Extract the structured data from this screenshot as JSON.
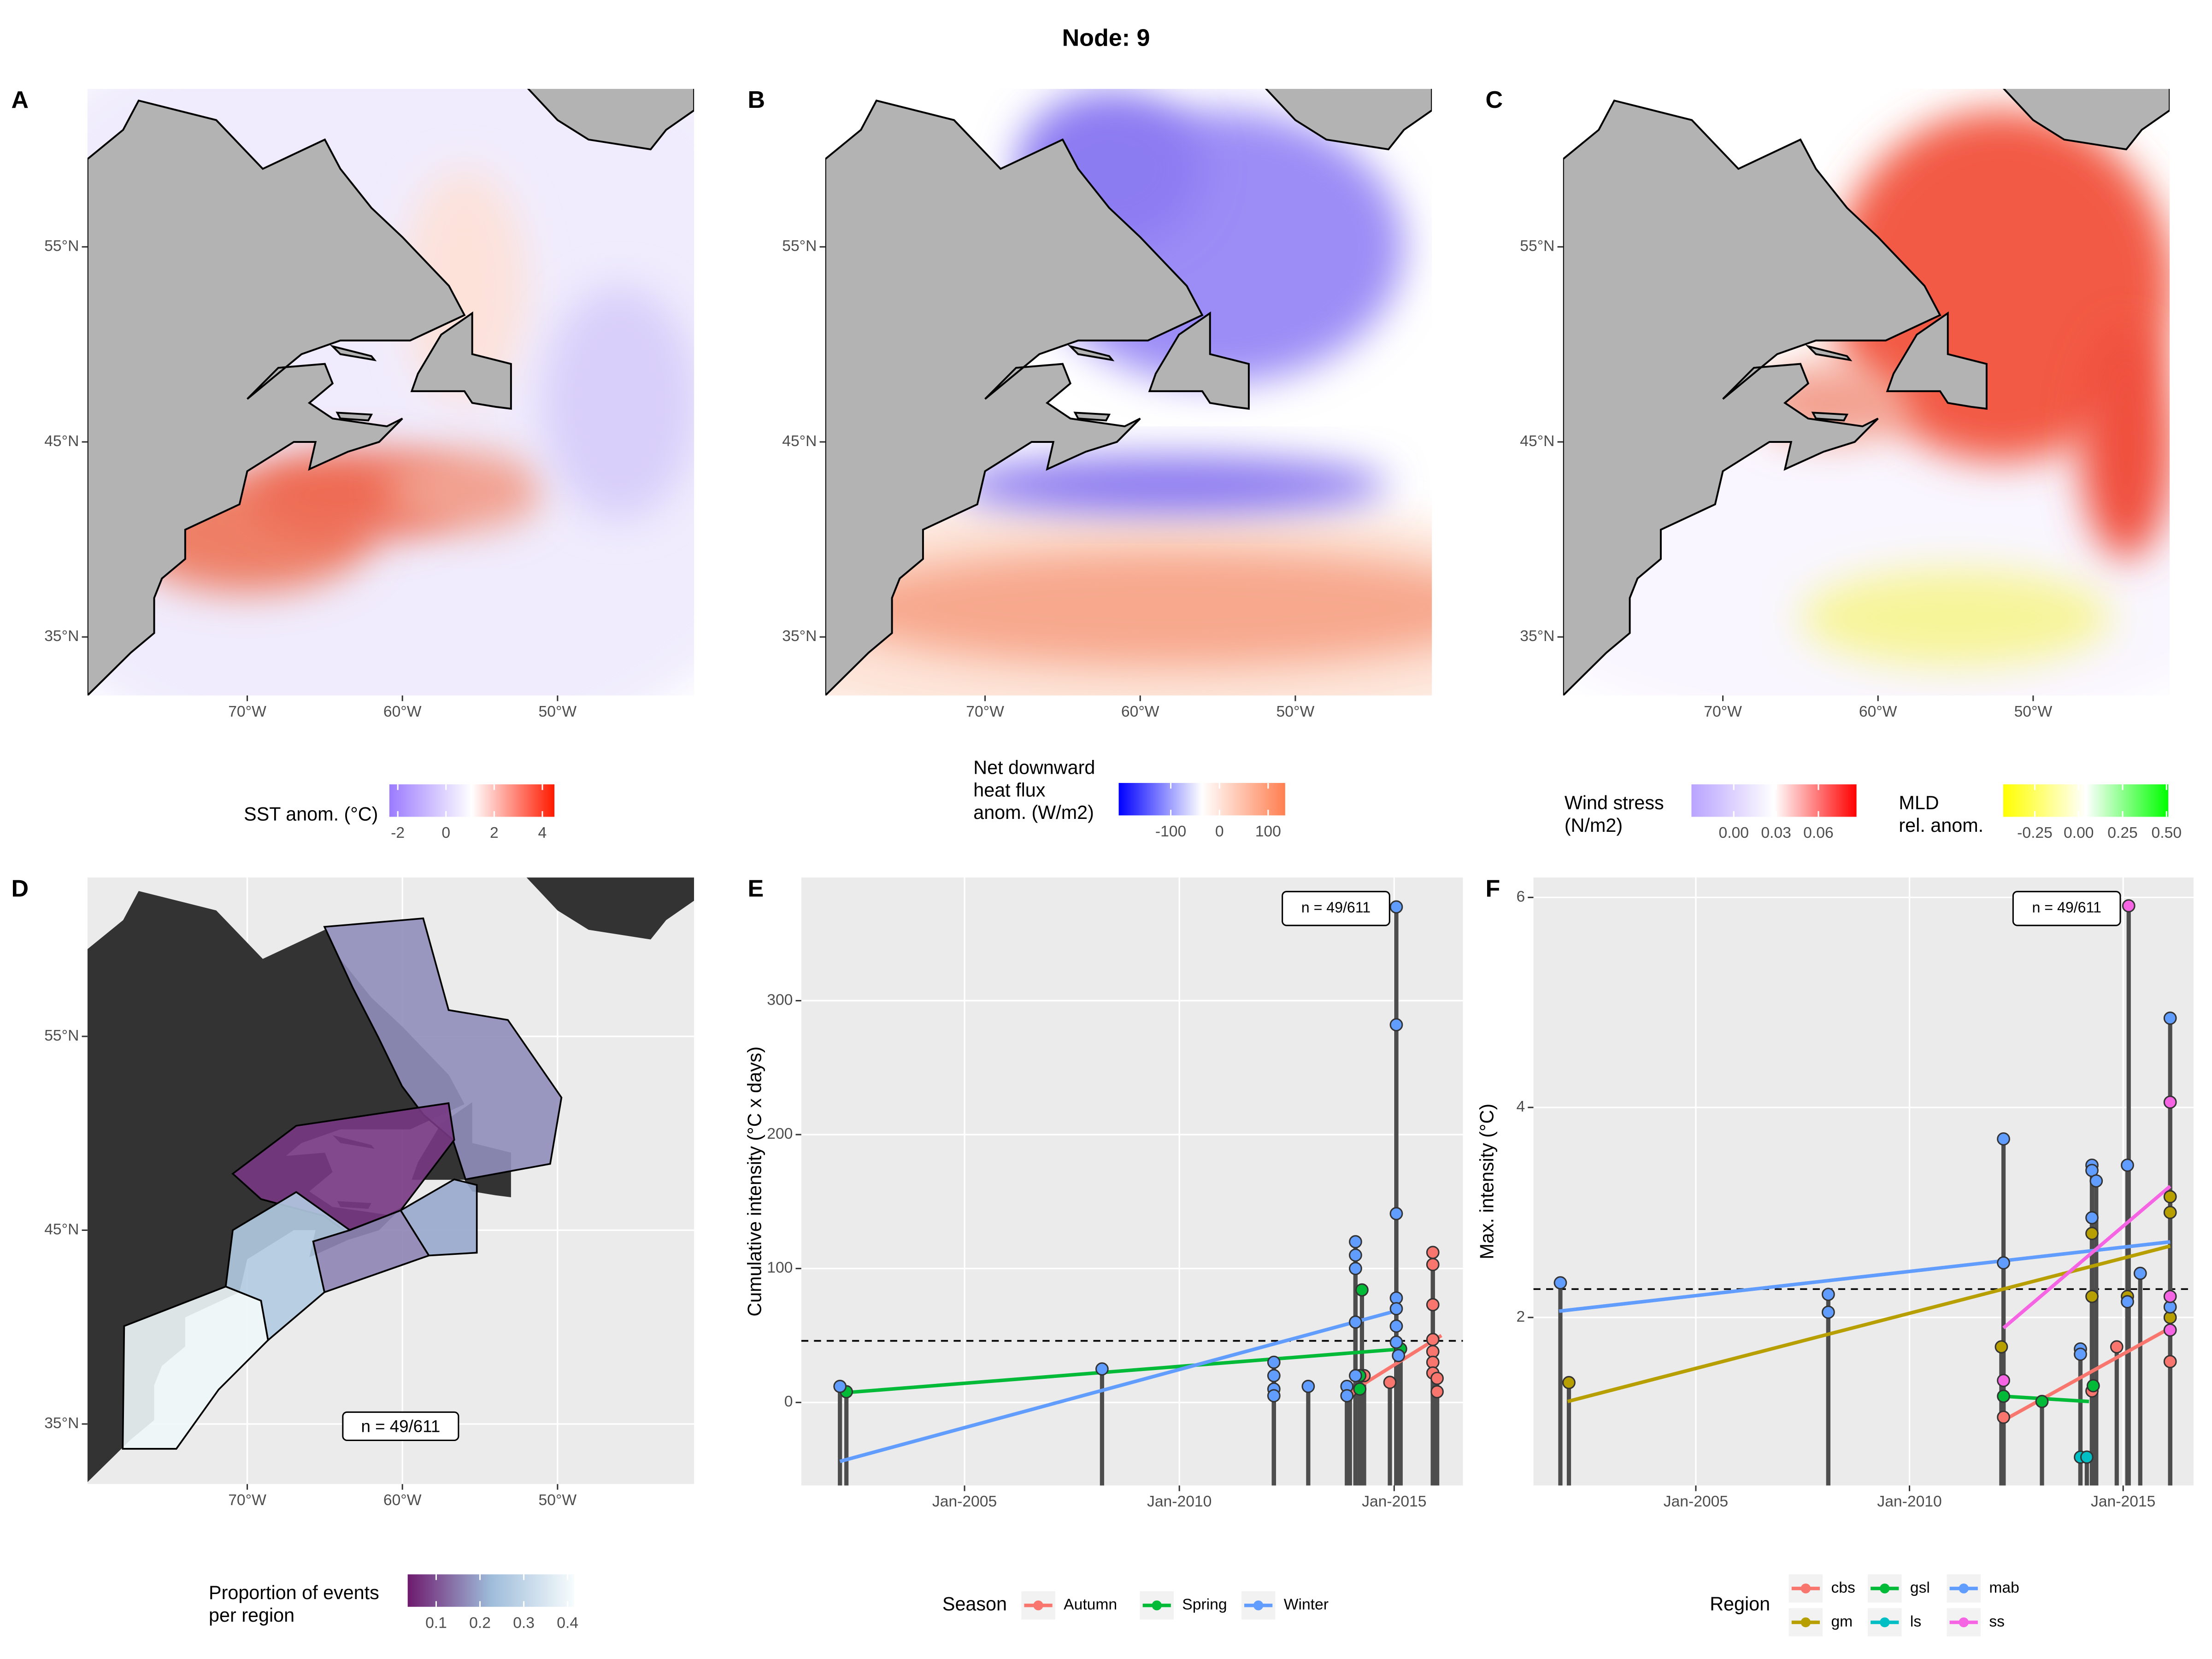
{
  "title": "Node: 9",
  "chart_data": [
    {
      "type": "map",
      "label": "A",
      "xlim": [
        -80.3,
        -41.2
      ],
      "ylim": [
        32,
        63.1
      ],
      "xticks": [
        {
          "value": -70,
          "label": "70°W"
        },
        {
          "value": -60,
          "label": "60°W"
        },
        {
          "value": -50,
          "label": "50°W"
        }
      ],
      "yticks": [
        {
          "value": 35,
          "label": "35°N"
        },
        {
          "value": 45,
          "label": "45°N"
        },
        {
          "value": 55,
          "label": "55°N"
        }
      ],
      "colorbars": [
        {
          "title": [
            "SST anom. (°C)"
          ],
          "lim": [
            -2.35,
            4.5
          ],
          "ticks": [
            -2,
            0,
            2,
            4
          ],
          "colors": [
            "#9b7bff",
            "#ffffff",
            "#ff1a00"
          ]
        }
      ]
    },
    {
      "type": "map",
      "label": "B",
      "xlim": [
        -80.3,
        -41.2
      ],
      "ylim": [
        32,
        63.1
      ],
      "xticks": [
        {
          "value": -70,
          "label": "70°W"
        },
        {
          "value": -60,
          "label": "60°W"
        },
        {
          "value": -50,
          "label": "50°W"
        }
      ],
      "yticks": [
        {
          "value": 35,
          "label": "35°N"
        },
        {
          "value": 45,
          "label": "45°N"
        },
        {
          "value": 55,
          "label": "55°N"
        }
      ],
      "colorbars": [
        {
          "title": [
            "Net downward",
            "heat flux",
            "anom. (W/m2)"
          ],
          "lim": [
            -207,
            135
          ],
          "ticks": [
            -100,
            0,
            100
          ],
          "colors": [
            "#0000ff",
            "#ffffff",
            "#ff7f50"
          ]
        }
      ]
    },
    {
      "type": "map",
      "label": "C",
      "xlim": [
        -80.3,
        -41.2
      ],
      "ylim": [
        32,
        63.1
      ],
      "xticks": [
        {
          "value": -70,
          "label": "70°W"
        },
        {
          "value": -60,
          "label": "60°W"
        },
        {
          "value": -50,
          "label": "50°W"
        }
      ],
      "yticks": [
        {
          "value": 35,
          "label": "35°N"
        },
        {
          "value": 45,
          "label": "45°N"
        },
        {
          "value": 55,
          "label": "55°N"
        }
      ],
      "colorbars": [
        {
          "title": [
            "Wind stress",
            "(N/m2)"
          ],
          "lim": [
            -0.03,
            0.087
          ],
          "ticks": [
            {
              "value": 0,
              "label": "0.00"
            },
            {
              "value": 0.03,
              "label": "0.03"
            },
            {
              "value": 0.06,
              "label": "0.06"
            }
          ],
          "colors": [
            "#b9a3ff",
            "#ffffff",
            "#ff0000"
          ]
        },
        {
          "title": [
            "MLD",
            "rel. anom."
          ],
          "lim": [
            -0.43,
            0.51
          ],
          "ticks": [
            {
              "value": -0.25,
              "label": "-0.25"
            },
            {
              "value": 0,
              "label": "0.00"
            },
            {
              "value": 0.25,
              "label": "0.25"
            },
            {
              "value": 0.5,
              "label": "0.50"
            }
          ],
          "colors": [
            "#ffff00",
            "#ffffff",
            "#00ff00"
          ]
        }
      ]
    },
    {
      "type": "choropleth",
      "label": "D",
      "xlim": [
        -80.3,
        -41.2
      ],
      "ylim": [
        31.9,
        63.2
      ],
      "xticks": [
        {
          "value": -70,
          "label": "70°W"
        },
        {
          "value": -60,
          "label": "60°W"
        },
        {
          "value": -50,
          "label": "50°W"
        }
      ],
      "yticks": [
        {
          "value": 35,
          "label": "35°N"
        },
        {
          "value": 45,
          "label": "45°N"
        },
        {
          "value": 55,
          "label": "55°N"
        }
      ],
      "values": [
        0.17,
        0.07,
        0.2,
        0.16,
        0.27,
        0.4
      ],
      "annotation": "n = 49/611",
      "colorbars": [
        {
          "title": [
            "Proportion of events",
            "per region"
          ],
          "lim": [
            0.035,
            0.415
          ],
          "ticks": [
            0.1,
            0.2,
            0.3,
            0.4
          ],
          "colors": [
            "#6e1a6e",
            "#9ebcda",
            "#f7fcfd"
          ]
        }
      ]
    },
    {
      "type": "lollipop",
      "label": "E",
      "ylabel": "Cumulative intensity (°C x days)",
      "xlim": [
        2001.2,
        2016.6
      ],
      "ylim": [
        -62,
        392
      ],
      "xticks": [
        {
          "value": 2005,
          "label": "Jan-2005"
        },
        {
          "value": 2010,
          "label": "Jan-2010"
        },
        {
          "value": 2015,
          "label": "Jan-2015"
        }
      ],
      "yticks": [
        0,
        100,
        200,
        300
      ],
      "grid": true,
      "hline": 46,
      "annotation": "n = 49/611",
      "legend_title": "Season",
      "series": [
        {
          "name": "Autumn",
          "color": "#F8766D",
          "x": [
            2013.97,
            2014.3,
            2014.9,
            2015.9,
            2015.9,
            2015.9,
            2015.9,
            2015.9,
            2015.9,
            2015.9,
            2016.0,
            2016.0
          ],
          "values": [
            8,
            20,
            15,
            112,
            103,
            73,
            47,
            38,
            30,
            22,
            18,
            8
          ],
          "trend_x": [
            2014.0,
            2016.1
          ],
          "trend_values": [
            8,
            50
          ]
        },
        {
          "name": "Spring",
          "color": "#00BA38",
          "x": [
            2002.25,
            2014.25,
            2014.2,
            2014.2,
            2015.15
          ],
          "values": [
            8,
            84,
            20,
            10,
            40
          ],
          "trend_x": [
            2002.1,
            2015.2
          ],
          "trend_values": [
            7,
            40
          ]
        },
        {
          "name": "Winter",
          "color": "#619CFF",
          "x": [
            2002.1,
            2008.2,
            2012.2,
            2012.2,
            2012.2,
            2012.2,
            2013.0,
            2013.9,
            2013.9,
            2014.1,
            2014.1,
            2014.1,
            2014.1,
            2014.1,
            2015.05,
            2015.05,
            2015.05,
            2015.05,
            2015.05,
            2015.05,
            2015.05,
            2015.1
          ],
          "values": [
            12,
            25,
            30,
            20,
            10,
            5,
            12,
            12,
            5,
            120,
            110,
            100,
            60,
            20,
            370,
            282,
            141,
            78,
            70,
            57,
            45,
            35
          ],
          "trend_x": [
            2002.1,
            2015.0
          ],
          "trend_values": [
            -44,
            68
          ]
        }
      ]
    },
    {
      "type": "lollipop",
      "label": "F",
      "ylabel": "Max. intensity (°C)",
      "xlim": [
        2001.2,
        2016.65
      ],
      "ylim": [
        0.4,
        6.19
      ],
      "xticks": [
        {
          "value": 2005,
          "label": "Jan-2005"
        },
        {
          "value": 2010,
          "label": "Jan-2010"
        },
        {
          "value": 2015,
          "label": "Jan-2015"
        }
      ],
      "yticks": [
        2,
        4,
        6
      ],
      "grid": true,
      "hline": 2.27,
      "annotation": "n = 49/611",
      "legend_title": "Region",
      "series": [
        {
          "name": "cbs",
          "color": "#F8766D",
          "x": [
            2012.2,
            2014.27,
            2014.85,
            2016.1
          ],
          "values": [
            1.05,
            1.3,
            1.72,
            1.58
          ],
          "trend_x": [
            2012.2,
            2016.1
          ],
          "trend_values": [
            1.02,
            1.9
          ]
        },
        {
          "name": "gm",
          "color": "#B79F00",
          "x": [
            2002.03,
            2012.15,
            2014.27,
            2014.27,
            2015.1,
            2016.1,
            2016.1,
            2016.1
          ],
          "values": [
            1.38,
            1.72,
            2.8,
            2.2,
            2.2,
            3.15,
            3.0,
            2.0
          ],
          "trend_x": [
            2002.0,
            2016.1
          ],
          "trend_values": [
            1.2,
            2.68
          ]
        },
        {
          "name": "gsl",
          "color": "#00BA38",
          "x": [
            2012.2,
            2013.1,
            2014.3
          ],
          "values": [
            1.25,
            1.2,
            1.35
          ],
          "trend_x": [
            2012.2,
            2014.2
          ],
          "trend_values": [
            1.25,
            1.2
          ]
        },
        {
          "name": "ls",
          "color": "#00BFC4",
          "x": [
            2014.0,
            2014.15
          ],
          "values": [
            0.67,
            0.67
          ]
        },
        {
          "name": "mab",
          "color": "#619CFF",
          "x": [
            2001.83,
            2008.1,
            2008.1,
            2012.2,
            2012.2,
            2014.0,
            2014.0,
            2014.27,
            2014.27,
            2014.27,
            2014.37,
            2015.1,
            2015.1,
            2015.4,
            2016.1,
            2016.1
          ],
          "values": [
            2.33,
            2.22,
            2.05,
            3.7,
            2.52,
            1.7,
            1.65,
            3.45,
            3.4,
            2.95,
            3.3,
            3.45,
            2.15,
            2.42,
            4.85,
            2.1
          ],
          "trend_x": [
            2001.8,
            2016.1
          ],
          "trend_values": [
            2.06,
            2.72
          ]
        },
        {
          "name": "ss",
          "color": "#F564E3",
          "x": [
            2012.2,
            2015.13,
            2016.1,
            2016.1,
            2016.1
          ],
          "values": [
            1.4,
            5.92,
            4.05,
            2.2,
            1.88
          ],
          "trend_x": [
            2012.2,
            2016.1
          ],
          "trend_values": [
            1.9,
            3.25
          ]
        }
      ]
    }
  ]
}
